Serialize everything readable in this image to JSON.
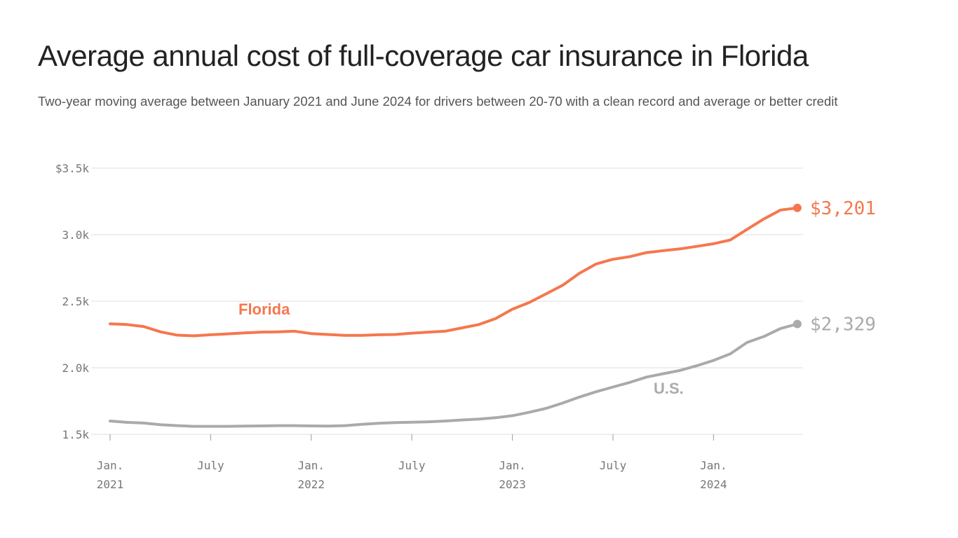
{
  "header": {
    "title": "Average annual cost of full-coverage car insurance in Florida",
    "subtitle": "Two-year moving average between January 2021 and June 2024 for drivers between 20-70 with a clean record and average or better credit"
  },
  "chart_data": {
    "type": "line",
    "title": "Average annual cost of full-coverage car insurance in Florida",
    "subtitle": "Two-year moving average between January 2021 and June 2024 for drivers between 20-70 with a clean record and average or better credit",
    "xlabel": "",
    "ylabel": "",
    "ylim": [
      1500,
      3500
    ],
    "y_ticks": [
      {
        "value": 3500,
        "label": "$3.5k"
      },
      {
        "value": 3000,
        "label": "3.0k"
      },
      {
        "value": 2500,
        "label": "2.5k"
      },
      {
        "value": 2000,
        "label": "2.0k"
      },
      {
        "value": 1500,
        "label": "1.5k"
      }
    ],
    "x_ticks": [
      {
        "value": "2021-01",
        "line1": "Jan.",
        "line2": "2021"
      },
      {
        "value": "2021-07",
        "line1": "July",
        "line2": ""
      },
      {
        "value": "2022-01",
        "line1": "Jan.",
        "line2": "2022"
      },
      {
        "value": "2022-07",
        "line1": "July",
        "line2": ""
      },
      {
        "value": "2023-01",
        "line1": "Jan.",
        "line2": "2023"
      },
      {
        "value": "2023-07",
        "line1": "July",
        "line2": ""
      },
      {
        "value": "2024-01",
        "line1": "Jan.",
        "line2": "2024"
      }
    ],
    "grid": true,
    "x": [
      "2021-01",
      "2021-02",
      "2021-03",
      "2021-04",
      "2021-05",
      "2021-06",
      "2021-07",
      "2021-08",
      "2021-09",
      "2021-10",
      "2021-11",
      "2021-12",
      "2022-01",
      "2022-02",
      "2022-03",
      "2022-04",
      "2022-05",
      "2022-06",
      "2022-07",
      "2022-08",
      "2022-09",
      "2022-10",
      "2022-11",
      "2022-12",
      "2023-01",
      "2023-02",
      "2023-03",
      "2023-04",
      "2023-05",
      "2023-06",
      "2023-07",
      "2023-08",
      "2023-09",
      "2023-10",
      "2023-11",
      "2023-12",
      "2024-01",
      "2024-02",
      "2024-03",
      "2024-04",
      "2024-05",
      "2024-06"
    ],
    "series": [
      {
        "name": "Florida",
        "color": "#f5774e",
        "end_label": "$3,201",
        "values": [
          2330,
          2325,
          2310,
          2270,
          2245,
          2240,
          2248,
          2255,
          2262,
          2268,
          2270,
          2275,
          2257,
          2250,
          2243,
          2243,
          2248,
          2250,
          2260,
          2268,
          2275,
          2300,
          2325,
          2370,
          2440,
          2490,
          2555,
          2620,
          2710,
          2780,
          2815,
          2835,
          2865,
          2880,
          2893,
          2912,
          2932,
          2960,
          3040,
          3118,
          3185,
          3201
        ]
      },
      {
        "name": "U.S.",
        "color": "#aaaaaa",
        "end_label": "$2,329",
        "values": [
          1600,
          1590,
          1585,
          1572,
          1565,
          1560,
          1560,
          1560,
          1562,
          1563,
          1565,
          1565,
          1563,
          1562,
          1565,
          1575,
          1583,
          1588,
          1591,
          1594,
          1600,
          1608,
          1614,
          1625,
          1640,
          1665,
          1695,
          1735,
          1780,
          1820,
          1855,
          1890,
          1930,
          1955,
          1980,
          2015,
          2055,
          2105,
          2190,
          2235,
          2295,
          2329
        ]
      }
    ]
  }
}
